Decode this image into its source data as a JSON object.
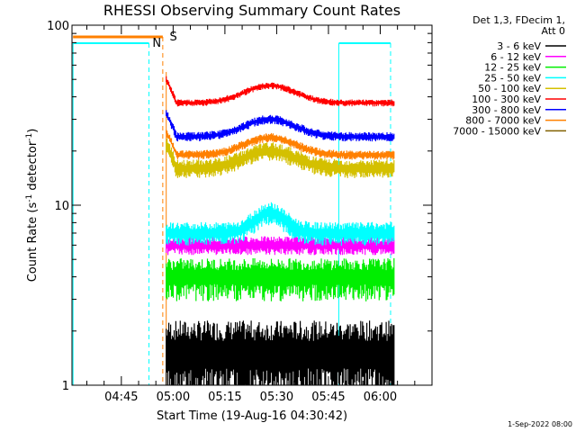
{
  "chart_data": {
    "type": "line",
    "title": "RHESSI Observing Summary Count Rates",
    "xlabel": "Start Time (19-Aug-16 04:30:42)",
    "ylabel_main": "Count Rate (s",
    "ylabel_sup1": "-1",
    "ylabel_mid": " detector",
    "ylabel_sup2": "-1",
    "ylabel_end": ")",
    "yscale": "log",
    "ylim": [
      1,
      100
    ],
    "y_ticks": [
      "1",
      "10",
      "100"
    ],
    "x_ticks": [
      "04:45",
      "05:00",
      "05:15",
      "05:30",
      "05:45",
      "06:00"
    ],
    "x_tick_minutes": [
      45,
      60,
      75,
      90,
      105,
      120
    ],
    "x_range_minutes": [
      30.7,
      135
    ],
    "legend_header": [
      "Det 1,3, FDecim 1,",
      "Att 0"
    ],
    "series": [
      {
        "name": "3 - 6 keV",
        "color": "#000000",
        "base": 1.5,
        "spread": 0.35
      },
      {
        "name": "6 - 12 keV",
        "color": "#ff00ff",
        "base": 6.0,
        "spread": 0.08
      },
      {
        "name": "12 - 25 keV",
        "color": "#00ee00",
        "base": 4.0,
        "spread": 0.18
      },
      {
        "name": "25 - 50 keV",
        "color": "#00ffff",
        "base": 7.0,
        "spread": 0.1
      },
      {
        "name": "50 - 100 keV",
        "color": "#d4c000",
        "base": 16.0,
        "spread": 0.08
      },
      {
        "name": "100 - 300 keV",
        "color": "#ff0000",
        "base": 37.0,
        "spread": 0.03
      },
      {
        "name": "300 - 800 keV",
        "color": "#0000ff",
        "base": 24.0,
        "spread": 0.04
      },
      {
        "name": "800 - 7000 keV",
        "color": "#ff8000",
        "base": 19.0,
        "spread": 0.04
      },
      {
        "name": "7000 - 15000 keV",
        "color": "#806000",
        "base": 1.2,
        "spread": 0.1
      }
    ],
    "data_start_minute": 58,
    "data_end_minute": 124,
    "bump_center_minute": 88,
    "markers": [
      {
        "label": "S",
        "color": "#ff8000",
        "type": "attenuator"
      },
      {
        "label": "N",
        "color": "#00ffff",
        "type": "night"
      }
    ],
    "footer": "1-Sep-2022 08:00"
  }
}
